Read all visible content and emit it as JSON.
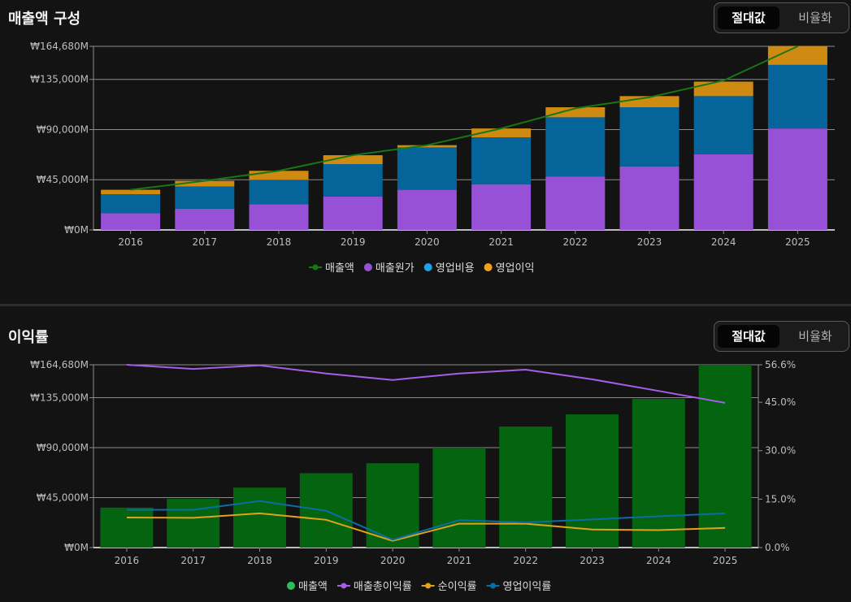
{
  "colors": {
    "revenue_line": "#157815",
    "cogs": "#9651d6",
    "opex": "#05649a",
    "op_income": "#cf8a12",
    "revenue_bar": "#04640f",
    "gross_margin": "#a45ee8",
    "net_margin": "#e1a21c",
    "op_margin": "#0a6ea6",
    "legend_revenue2": "#2dbd5a",
    "legend_opex": "#1fa0e8",
    "legend_opinc": "#f2a11a"
  },
  "panel1": {
    "title": "매출액 구성",
    "toggle": {
      "active": "절대값",
      "inactive": "비율화"
    }
  },
  "panel2": {
    "title": "이익률",
    "toggle": {
      "active": "절대값",
      "inactive": "비율화"
    }
  },
  "chart_data": [
    {
      "type": "bar",
      "stacked": true,
      "categories": [
        "2016",
        "2017",
        "2018",
        "2019",
        "2020",
        "2021",
        "2022",
        "2023",
        "2024",
        "2025"
      ],
      "ylim": [
        0,
        164680
      ],
      "y_ticks": [
        "₩0M",
        "₩45,000M",
        "₩90,000M",
        "₩135,000M",
        "₩164,680M"
      ],
      "y_tick_values": [
        0,
        45000,
        90000,
        135000,
        164680
      ],
      "grid": true,
      "legend_position": "bottom",
      "series": [
        {
          "name": "매출원가",
          "type": "bar",
          "color_key": "cogs",
          "values": [
            15000,
            19000,
            23000,
            30000,
            36000,
            41000,
            48000,
            57000,
            68000,
            91000
          ]
        },
        {
          "name": "영업비용",
          "type": "bar",
          "color_key": "opex",
          "values": [
            17000,
            20000,
            22000,
            29000,
            38000,
            42000,
            53000,
            53000,
            52000,
            57000
          ]
        },
        {
          "name": "영업이익",
          "type": "bar",
          "color_key": "op_income",
          "values": [
            4000,
            5000,
            8000,
            8000,
            2000,
            8000,
            9000,
            10000,
            13000,
            17000
          ]
        },
        {
          "name": "매출액",
          "type": "line",
          "color_key": "revenue_line",
          "values": [
            36000,
            44000,
            53000,
            67000,
            76000,
            91000,
            109000,
            119000,
            134000,
            164680
          ]
        }
      ],
      "legend": [
        {
          "name": "매출액",
          "color_key": "revenue_line",
          "marker": "line"
        },
        {
          "name": "매출원가",
          "color_key": "cogs",
          "marker": "dot"
        },
        {
          "name": "영업비용",
          "color_key": "legend_opex",
          "marker": "dot"
        },
        {
          "name": "영업이익",
          "color_key": "legend_opinc",
          "marker": "dot"
        }
      ]
    },
    {
      "type": "bar",
      "categories": [
        "2016",
        "2017",
        "2018",
        "2019",
        "2020",
        "2021",
        "2022",
        "2023",
        "2024",
        "2025"
      ],
      "ylim": [
        0,
        164680
      ],
      "y_ticks": [
        "₩0M",
        "₩45,000M",
        "₩90,000M",
        "₩135,000M",
        "₩164,680M"
      ],
      "y_tick_values": [
        0,
        45000,
        90000,
        135000,
        164680
      ],
      "y2lim": [
        0,
        56.6
      ],
      "y2_ticks": [
        "0.0%",
        "15.0%",
        "30.0%",
        "45.0%",
        "56.6%"
      ],
      "y2_tick_values": [
        0,
        15,
        30,
        45,
        56.6
      ],
      "grid": true,
      "legend_position": "bottom",
      "series": [
        {
          "name": "매출액",
          "type": "bar",
          "axis": "left",
          "color_key": "revenue_bar",
          "values": [
            36000,
            44000,
            54000,
            67000,
            76000,
            90000,
            109000,
            120000,
            134000,
            164680
          ]
        },
        {
          "name": "매출총이익률",
          "type": "line",
          "axis": "right",
          "color_key": "gross_margin",
          "values": [
            56.6,
            55.3,
            56.4,
            53.9,
            51.9,
            53.9,
            55.1,
            52.1,
            48.5,
            44.8
          ]
        },
        {
          "name": "순이익률",
          "type": "line",
          "axis": "right",
          "color_key": "net_margin",
          "values": [
            9.3,
            9.2,
            10.6,
            8.6,
            2.1,
            7.4,
            7.4,
            5.6,
            5.4,
            6.1
          ]
        },
        {
          "name": "영업이익률",
          "type": "line",
          "axis": "right",
          "color_key": "op_margin",
          "values": [
            11.7,
            11.7,
            14.4,
            11.4,
            2.4,
            8.5,
            7.8,
            8.7,
            9.7,
            10.6
          ]
        }
      ],
      "legend": [
        {
          "name": "매출액",
          "color_key": "legend_revenue2",
          "marker": "dot"
        },
        {
          "name": "매출총이익률",
          "color_key": "gross_margin",
          "marker": "line"
        },
        {
          "name": "순이익률",
          "color_key": "net_margin",
          "marker": "line"
        },
        {
          "name": "영업이익률",
          "color_key": "op_margin",
          "marker": "line"
        }
      ]
    }
  ]
}
